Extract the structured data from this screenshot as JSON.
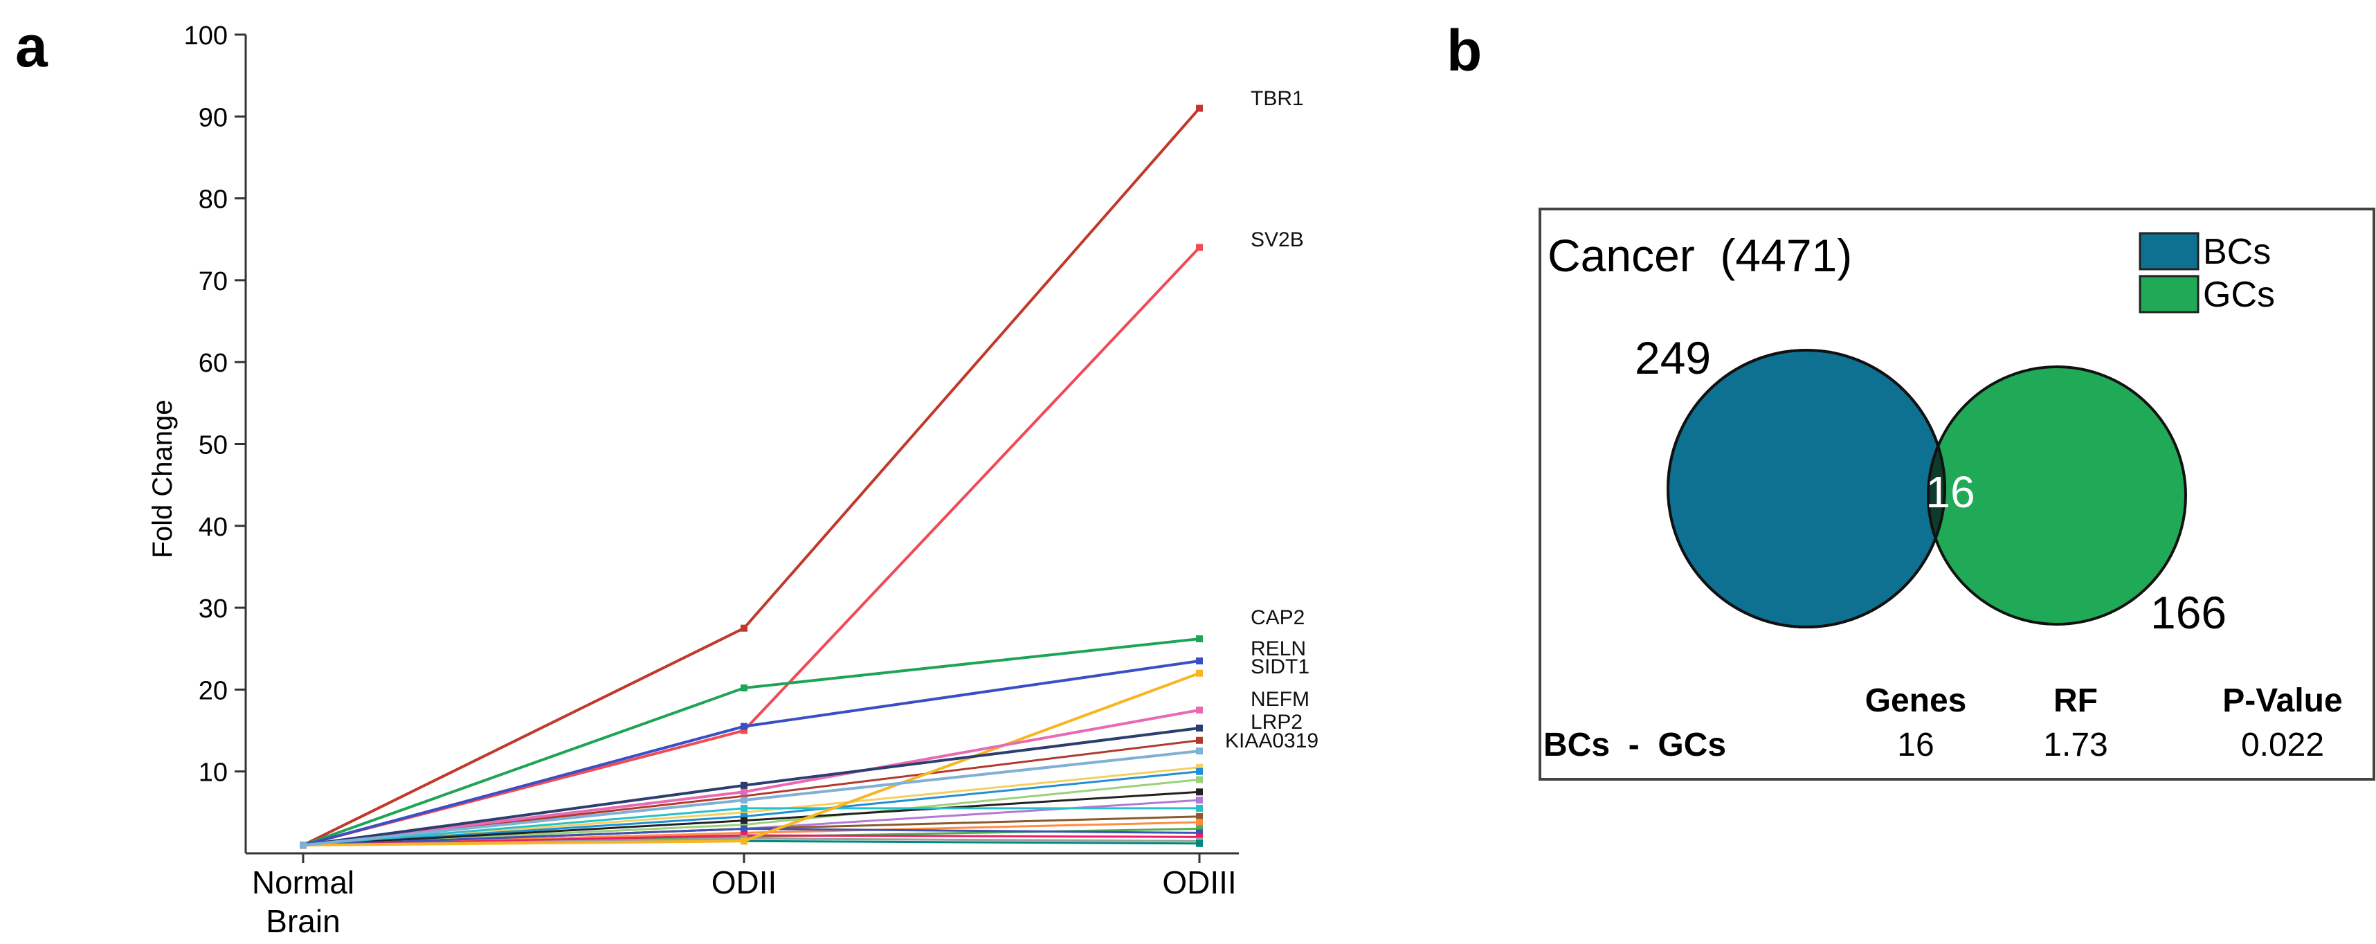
{
  "panel_a_label": "a",
  "panel_b_label": "b",
  "chart_data": [
    {
      "type": "line",
      "panel": "a",
      "title": "",
      "xlabel": "",
      "ylabel": "Fold  Change",
      "ylim": [
        0,
        100
      ],
      "yticks": [
        10,
        20,
        30,
        40,
        50,
        60,
        70,
        80,
        90,
        100
      ],
      "x_categories": [
        [
          "Normal",
          "Brain"
        ],
        [
          "ODII"
        ],
        [
          "ODIII"
        ]
      ],
      "series": [
        {
          "name": "TBR1",
          "values": [
            1,
            27.5,
            91
          ],
          "color": "#c0392b",
          "labeled": true
        },
        {
          "name": "SV2B",
          "values": [
            1,
            15,
            74
          ],
          "color": "#f04a55",
          "labeled": true
        },
        {
          "name": "CAP2",
          "values": [
            1,
            20.2,
            26.2
          ],
          "color": "#1ea455",
          "labeled": true
        },
        {
          "name": "RELN",
          "values": [
            1,
            15.5,
            23.5
          ],
          "color": "#3a4fc4",
          "labeled": true
        },
        {
          "name": "SIDT1",
          "values": [
            1,
            1.5,
            22
          ],
          "color": "#f7b521",
          "labeled": true
        },
        {
          "name": "NEFM",
          "values": [
            1,
            7.5,
            17.5
          ],
          "color": "#e86bb2",
          "labeled": true
        },
        {
          "name": "LRP2",
          "values": [
            1,
            8.3,
            15.3
          ],
          "color": "#2c3e70",
          "labeled": true
        },
        {
          "name": "KIAA0319",
          "values": [
            1,
            6.5,
            12.5
          ],
          "color": "#7fb0d6",
          "labeled": true
        },
        {
          "name": "",
          "values": [
            1,
            7,
            13.8
          ],
          "color": "#b03a2e",
          "labeled": false
        },
        {
          "name": "",
          "values": [
            1,
            5,
            10.5
          ],
          "color": "#f5d060",
          "labeled": false
        },
        {
          "name": "",
          "values": [
            1,
            4.5,
            10
          ],
          "color": "#1f8fd6",
          "labeled": false
        },
        {
          "name": "",
          "values": [
            1,
            3.5,
            9
          ],
          "color": "#9ad17a",
          "labeled": false
        },
        {
          "name": "",
          "values": [
            1,
            4,
            7.5
          ],
          "color": "#222222",
          "labeled": false
        },
        {
          "name": "",
          "values": [
            1,
            3,
            6.5
          ],
          "color": "#b479d6",
          "labeled": false
        },
        {
          "name": "",
          "values": [
            1,
            5.5,
            5.5
          ],
          "color": "#27c0c8",
          "labeled": false
        },
        {
          "name": "",
          "values": [
            1,
            3,
            4.5
          ],
          "color": "#8a5a2b",
          "labeled": false
        },
        {
          "name": "",
          "values": [
            1,
            2.5,
            3.8
          ],
          "color": "#ff8c42",
          "labeled": false
        },
        {
          "name": "",
          "values": [
            1,
            2,
            3
          ],
          "color": "#4caf50",
          "labeled": false
        },
        {
          "name": "",
          "values": [
            1,
            3,
            2.5
          ],
          "color": "#3f51b5",
          "labeled": false
        },
        {
          "name": "",
          "values": [
            1,
            2.2,
            2
          ],
          "color": "#e91e63",
          "labeled": false
        },
        {
          "name": "",
          "values": [
            1,
            1.8,
            1.5
          ],
          "color": "#9e9e9e",
          "labeled": false
        },
        {
          "name": "",
          "values": [
            1,
            1.5,
            1.2
          ],
          "color": "#00897b",
          "labeled": false
        }
      ]
    },
    {
      "type": "venn",
      "panel": "b",
      "title": "Cancer  (4471)",
      "sets": [
        {
          "name": "BCs",
          "unique": 249,
          "color": "#0f7192"
        },
        {
          "name": "GCs",
          "unique": 166,
          "color": "#20a956"
        }
      ],
      "intersection": {
        "value": 16,
        "color": "#0f3b2a"
      },
      "stats_table": {
        "headers": [
          "Genes",
          "RF",
          "P-Value"
        ],
        "row_label": "BCs  -  GCs",
        "row_values": [
          "16",
          "1.73",
          "0.022"
        ]
      }
    }
  ]
}
